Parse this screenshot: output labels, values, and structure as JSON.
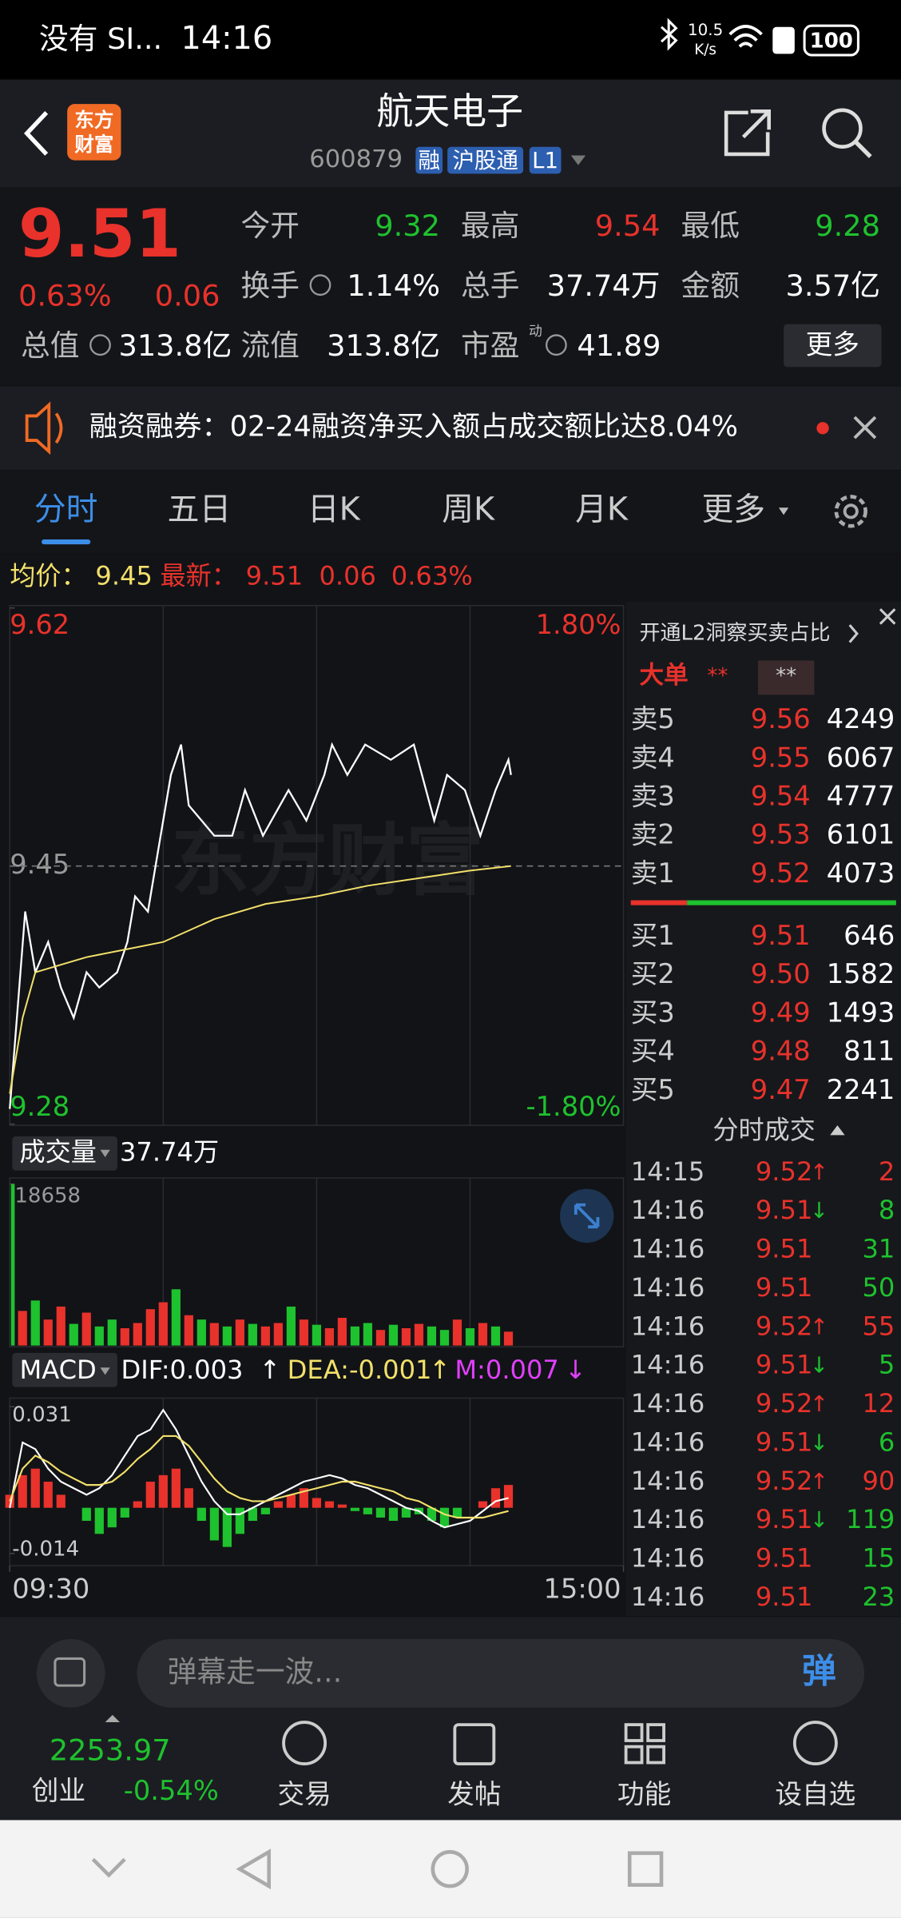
{
  "status": {
    "carrier": "没有 SI...",
    "time": "14:16",
    "net_speed": "10.5",
    "net_unit": "K/s",
    "battery": "100"
  },
  "header": {
    "logo": [
      "东方",
      "财富"
    ],
    "title": "航天电子",
    "code": "600879",
    "tags": [
      "融",
      "沪股通",
      "L1"
    ]
  },
  "quote": {
    "price": "9.51",
    "change_pct": "0.63%",
    "change": "0.06",
    "fields": [
      {
        "label": "今开",
        "value": "9.32",
        "color": "#1ec22e"
      },
      {
        "label": "最高",
        "value": "9.54",
        "color": "#e8322b"
      },
      {
        "label": "最低",
        "value": "9.28",
        "color": "#1ec22e"
      },
      {
        "label": "换手",
        "value": "1.14%",
        "color": "#ffffff"
      },
      {
        "label": "总手",
        "value": "37.74万",
        "color": "#ffffff"
      },
      {
        "label": "金额",
        "value": "3.57亿",
        "color": "#ffffff"
      },
      {
        "label": "总值",
        "value": "313.8亿",
        "color": "#ffffff"
      },
      {
        "label": "流值",
        "value": "313.8亿",
        "color": "#ffffff"
      },
      {
        "label": "市盈",
        "value": "41.89",
        "color": "#ffffff",
        "superscript": "动"
      }
    ],
    "more": "更多"
  },
  "notice": {
    "text": "融资融券：02-24融资净买入额占成交额比达8.04%"
  },
  "tabs": {
    "items": [
      "分时",
      "五日",
      "日K",
      "周K",
      "月K",
      "更多"
    ],
    "active": 0
  },
  "intraday": {
    "avg_label": "均价：",
    "avg": "9.45",
    "latest_label": "最新：",
    "latest": "9.51",
    "change": "0.06",
    "change_pct": "0.63%",
    "watermark": "东方财富",
    "xlim": [
      0,
      240
    ],
    "xticks": [
      {
        "value": 0,
        "label": "09:30"
      },
      {
        "value": 240,
        "label": "15:00"
      }
    ],
    "price": {
      "ylim": [
        9.28,
        9.62
      ],
      "yticks": [
        9.62,
        9.45,
        9.28
      ],
      "pct_labels": [
        "1.80%",
        "-1.80%"
      ],
      "color": "#ffffff",
      "avg_color": "#f2e06a",
      "minutes": [
        0,
        6,
        10,
        15,
        20,
        25,
        30,
        35,
        42,
        46,
        49,
        54,
        58,
        63,
        67,
        70,
        75,
        80,
        87,
        92,
        99,
        109,
        116,
        123,
        126,
        132,
        139,
        149,
        158,
        166,
        171,
        178,
        184,
        190,
        195,
        196
      ],
      "values": [
        9.29,
        9.42,
        9.38,
        9.4,
        9.37,
        9.35,
        9.38,
        9.37,
        9.38,
        9.4,
        9.43,
        9.42,
        9.46,
        9.51,
        9.53,
        9.49,
        9.48,
        9.47,
        9.47,
        9.5,
        9.47,
        9.5,
        9.48,
        9.51,
        9.53,
        9.51,
        9.53,
        9.52,
        9.53,
        9.48,
        9.51,
        9.5,
        9.47,
        9.5,
        9.52,
        9.51
      ],
      "avg_minutes": [
        0,
        5,
        10,
        20,
        30,
        45,
        60,
        80,
        100,
        120,
        140,
        160,
        180,
        196
      ],
      "avg_values": [
        9.3,
        9.35,
        9.38,
        9.385,
        9.39,
        9.395,
        9.4,
        9.415,
        9.425,
        9.43,
        9.437,
        9.442,
        9.447,
        9.45
      ]
    },
    "volume": {
      "label": "成交量",
      "total": "37.74万",
      "ylim": [
        0,
        18658
      ],
      "yticks": [
        18658
      ],
      "minutes": [
        0,
        5,
        10,
        15,
        20,
        25,
        30,
        35,
        40,
        45,
        50,
        55,
        60,
        65,
        70,
        75,
        80,
        85,
        90,
        95,
        100,
        105,
        110,
        115,
        120,
        125,
        130,
        135,
        140,
        145,
        150,
        155,
        160,
        165,
        170,
        175,
        180,
        185,
        190,
        195
      ],
      "values": [
        18658,
        4000,
        5200,
        3000,
        4500,
        2500,
        3800,
        2200,
        3000,
        2000,
        2600,
        4200,
        5000,
        6500,
        3500,
        3000,
        2600,
        2200,
        3000,
        2500,
        2200,
        2600,
        4500,
        3000,
        2400,
        2000,
        3200,
        2200,
        2600,
        1800,
        2400,
        2000,
        2500,
        2200,
        1800,
        3000,
        2000,
        2600,
        2200,
        1600
      ],
      "colors": [
        "#1ec22e",
        "#e8322b",
        "#1ec22e",
        "#e8322b",
        "#e8322b",
        "#1ec22e",
        "#e8322b",
        "#1ec22e",
        "#1ec22e",
        "#e8322b",
        "#e8322b",
        "#e8322b",
        "#e8322b",
        "#1ec22e",
        "#e8322b",
        "#1ec22e",
        "#e8322b",
        "#1ec22e",
        "#e8322b",
        "#1ec22e",
        "#e8322b",
        "#e8322b",
        "#1ec22e",
        "#e8322b",
        "#1ec22e",
        "#e8322b",
        "#e8322b",
        "#1ec22e",
        "#1ec22e",
        "#e8322b",
        "#1ec22e",
        "#e8322b",
        "#e8322b",
        "#1ec22e",
        "#1ec22e",
        "#e8322b",
        "#1ec22e",
        "#e8322b",
        "#1ec22e",
        "#e8322b"
      ]
    },
    "macd": {
      "label": "MACD",
      "dif_label": "DIF:0.003",
      "dea_label": "DEA:-0.001",
      "m_label": "M:0.007",
      "ylim": [
        -0.014,
        0.031
      ],
      "yticks": [
        0.031,
        -0.014
      ],
      "pos_color": "#e8322b",
      "neg_color": "#1ec22e",
      "dif_color": "#ffffff",
      "dea_color": "#f2e06a",
      "hist": [
        0.004,
        0.01,
        0.012,
        0.008,
        0.004,
        0.0,
        -0.004,
        -0.008,
        -0.006,
        -0.003,
        0.002,
        0.008,
        0.01,
        0.012,
        0.006,
        -0.004,
        -0.01,
        -0.012,
        -0.008,
        -0.004,
        -0.002,
        0.002,
        0.004,
        0.006,
        0.003,
        0.002,
        0.001,
        -0.001,
        -0.002,
        -0.003,
        -0.004,
        -0.003,
        -0.002,
        -0.004,
        -0.006,
        -0.003,
        0.0,
        0.002,
        0.006,
        0.007
      ],
      "dif": [
        0.0,
        0.02,
        0.018,
        0.012,
        0.008,
        0.006,
        0.004,
        0.006,
        0.01,
        0.016,
        0.022,
        0.024,
        0.03,
        0.024,
        0.016,
        0.008,
        0.002,
        -0.002,
        -0.002,
        0.0,
        0.002,
        0.004,
        0.006,
        0.008,
        0.009,
        0.01,
        0.009,
        0.007,
        0.006,
        0.004,
        0.002,
        0.0,
        -0.001,
        -0.004,
        -0.006,
        -0.005,
        -0.004,
        -0.001,
        0.002,
        0.003
      ],
      "dea": [
        0.002,
        0.012,
        0.016,
        0.014,
        0.011,
        0.009,
        0.007,
        0.007,
        0.008,
        0.011,
        0.015,
        0.018,
        0.022,
        0.022,
        0.019,
        0.014,
        0.009,
        0.005,
        0.003,
        0.002,
        0.002,
        0.003,
        0.004,
        0.005,
        0.006,
        0.007,
        0.008,
        0.008,
        0.007,
        0.006,
        0.005,
        0.003,
        0.002,
        0.0,
        -0.002,
        -0.003,
        -0.003,
        -0.003,
        -0.002,
        -0.001
      ]
    }
  },
  "order_book": {
    "promo": "开通L2洞察买卖占比",
    "big_order": "大单",
    "masks": [
      "**",
      "**"
    ],
    "sell": [
      {
        "label": "卖5",
        "price": "9.56",
        "volume": "4249"
      },
      {
        "label": "卖4",
        "price": "9.55",
        "volume": "6067"
      },
      {
        "label": "卖3",
        "price": "9.54",
        "volume": "4777"
      },
      {
        "label": "卖2",
        "price": "9.53",
        "volume": "6101"
      },
      {
        "label": "卖1",
        "price": "9.52",
        "volume": "4073"
      }
    ],
    "buy": [
      {
        "label": "买1",
        "price": "9.51",
        "volume": "646"
      },
      {
        "label": "买2",
        "price": "9.50",
        "volume": "1582"
      },
      {
        "label": "买3",
        "price": "9.49",
        "volume": "1493"
      },
      {
        "label": "买4",
        "price": "9.48",
        "volume": "811"
      },
      {
        "label": "买5",
        "price": "9.47",
        "volume": "2241"
      }
    ]
  },
  "trades": {
    "title": "分时成交",
    "rows": [
      {
        "time": "14:15",
        "price": "9.52",
        "arrow": "↑",
        "volume": "2",
        "color": "#e8322b"
      },
      {
        "time": "14:16",
        "price": "9.51",
        "arrow": "↓",
        "volume": "8",
        "color": "#1ec22e"
      },
      {
        "time": "14:16",
        "price": "9.51",
        "volume": "31",
        "color": "#1ec22e"
      },
      {
        "time": "14:16",
        "price": "9.51",
        "volume": "50",
        "color": "#1ec22e"
      },
      {
        "time": "14:16",
        "price": "9.52",
        "arrow": "↑",
        "volume": "55",
        "color": "#e8322b"
      },
      {
        "time": "14:16",
        "price": "9.51",
        "arrow": "↓",
        "volume": "5",
        "color": "#1ec22e"
      },
      {
        "time": "14:16",
        "price": "9.52",
        "arrow": "↑",
        "volume": "12",
        "color": "#e8322b"
      },
      {
        "time": "14:16",
        "price": "9.51",
        "arrow": "↓",
        "volume": "6",
        "color": "#1ec22e"
      },
      {
        "time": "14:16",
        "price": "9.52",
        "arrow": "↑",
        "volume": "90",
        "color": "#e8322b"
      },
      {
        "time": "14:16",
        "price": "9.51",
        "arrow": "↓",
        "volume": "119",
        "color": "#1ec22e"
      },
      {
        "time": "14:16",
        "price": "9.51",
        "volume": "15",
        "color": "#1ec22e"
      },
      {
        "time": "14:16",
        "price": "9.51",
        "volume": "23",
        "color": "#1ec22e"
      }
    ]
  },
  "comment": {
    "placeholder": "弹幕走一波...",
    "button": "弹"
  },
  "bottom_nav": {
    "index_value": "2253.97",
    "index_name": "创业",
    "index_change": "-0.54%",
    "items": [
      "交易",
      "发帖",
      "功能",
      "设自选"
    ]
  }
}
